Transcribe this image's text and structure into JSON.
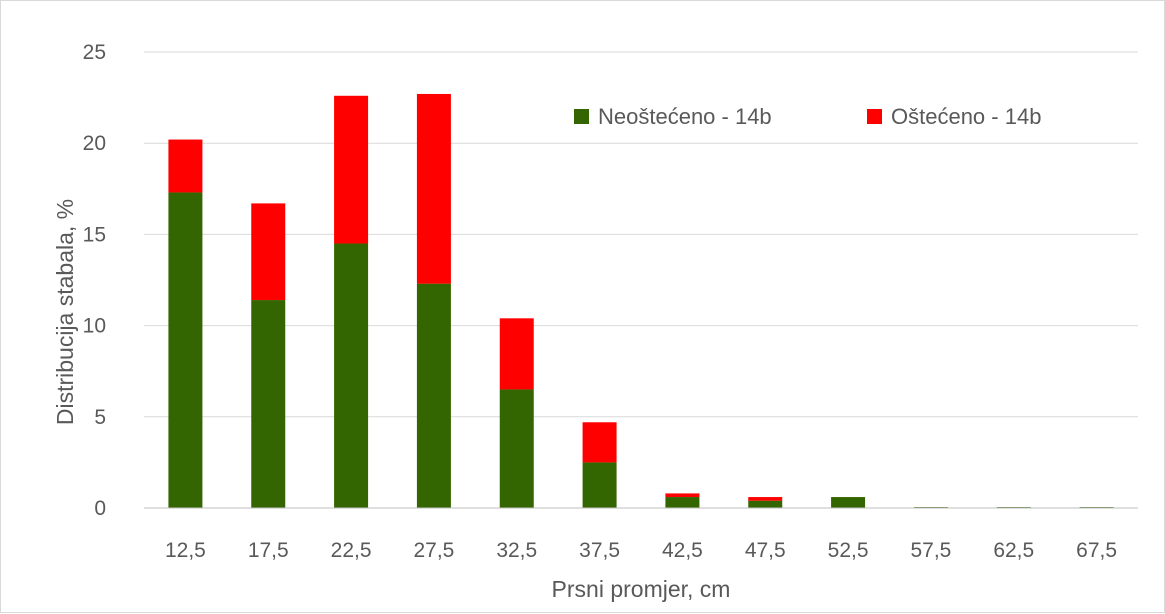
{
  "chart_data": {
    "type": "bar",
    "stacked": true,
    "title": "",
    "xlabel": "Prsni promjer, cm",
    "ylabel": "Distribucija stabala, %",
    "ylim": [
      0,
      25
    ],
    "yticks": [
      "0",
      "5",
      "10",
      "15",
      "20",
      "25"
    ],
    "categories": [
      "12,5",
      "17,5",
      "22,5",
      "27,5",
      "32,5",
      "37,5",
      "42,5",
      "47,5",
      "52,5",
      "57,5",
      "62,5",
      "67,5"
    ],
    "series": [
      {
        "name": "Neoštećeno - 14b",
        "color": "#336600",
        "values": [
          17.3,
          11.4,
          14.5,
          12.3,
          6.5,
          2.5,
          0.6,
          0.4,
          0.6,
          0.05,
          0.05,
          0.05
        ]
      },
      {
        "name": "Oštećeno - 14b",
        "color": "#ff0000",
        "values": [
          2.9,
          5.3,
          8.1,
          10.4,
          3.9,
          2.2,
          0.2,
          0.2,
          0.0,
          0.0,
          0.0,
          0.0
        ]
      }
    ],
    "grid": true,
    "legend_position": "top-right"
  }
}
